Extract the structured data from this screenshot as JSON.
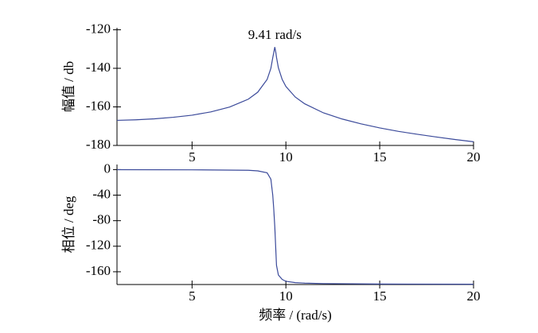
{
  "chart_data": [
    {
      "type": "line",
      "ylabel": "幅值 / db",
      "annotation": "9.41 rad/s",
      "color": "#3b4a9a",
      "x": [
        1,
        2,
        3,
        4,
        5,
        6,
        7,
        8,
        8.5,
        9,
        9.2,
        9.3,
        9.35,
        9.41,
        9.47,
        9.5,
        9.6,
        9.8,
        10,
        10.5,
        11,
        12,
        13,
        14,
        15,
        16,
        17,
        18,
        19,
        20
      ],
      "values": [
        -167.0,
        -166.7,
        -166.2,
        -165.4,
        -164.3,
        -162.6,
        -160.1,
        -156.0,
        -152.4,
        -145.8,
        -140.0,
        -134.5,
        -132.1,
        -129.0,
        -132.1,
        -134.3,
        -139.7,
        -145.7,
        -149.4,
        -154.9,
        -158.4,
        -163.1,
        -166.3,
        -168.8,
        -170.9,
        -172.7,
        -174.2,
        -175.6,
        -176.9,
        -178.1
      ],
      "xlim": [
        1,
        20
      ],
      "xticks": [
        5,
        10,
        15,
        20
      ],
      "ylim": [
        -180,
        -119
      ],
      "yticks": [
        -180,
        -160,
        -140,
        -120
      ]
    },
    {
      "type": "line",
      "ylabel": "相位 / deg",
      "xlabel": "频率 / (rad/s)",
      "color": "#3b4a9a",
      "x": [
        1,
        5,
        8,
        8.5,
        9,
        9.2,
        9.3,
        9.35,
        9.41,
        9.47,
        9.5,
        9.6,
        9.8,
        10,
        10.5,
        11,
        12,
        15,
        20
      ],
      "values": [
        -0.1,
        -0.3,
        -1,
        -2,
        -5,
        -15,
        -40,
        -60,
        -90,
        -130,
        -150,
        -165,
        -172,
        -175,
        -177,
        -177.8,
        -178.5,
        -179.2,
        -179.5
      ],
      "xlim": [
        1,
        20
      ],
      "xticks": [
        5,
        10,
        15,
        20
      ],
      "ylim": [
        -180,
        8
      ],
      "yticks": [
        -160,
        -120,
        -80,
        -40,
        0
      ]
    }
  ]
}
